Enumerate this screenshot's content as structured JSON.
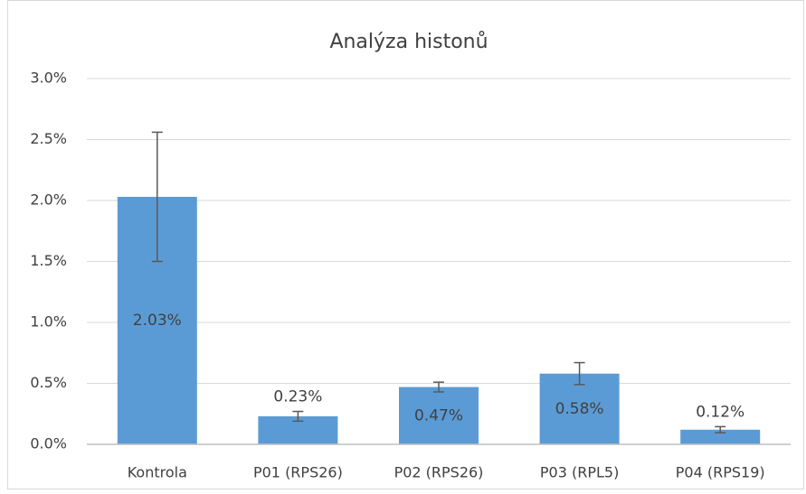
{
  "chart_data": {
    "type": "bar",
    "title": "Analýza histonů",
    "categories": [
      "Kontrola",
      "P01 (RPS26)",
      "P02 (RPS26)",
      "P03 (RPL5)",
      "P04 (RPS19)"
    ],
    "values": [
      2.03,
      0.23,
      0.47,
      0.58,
      0.12
    ],
    "value_labels": [
      "2.03%",
      "0.23%",
      "0.47%",
      "0.58%",
      "0.12%"
    ],
    "errors": [
      0.53,
      0.04,
      0.04,
      0.09,
      0.025
    ],
    "color": "#5b9bd5",
    "ylim": [
      0,
      3
    ],
    "yticks": [
      {
        "value": 0,
        "label": "0.0%"
      },
      {
        "value": 0.5,
        "label": "0.5%"
      },
      {
        "value": 1,
        "label": "1.0%"
      },
      {
        "value": 1.5,
        "label": "1.5%"
      },
      {
        "value": 2,
        "label": "2.0%"
      },
      {
        "value": 2.5,
        "label": "2.5%"
      },
      {
        "value": 3,
        "label": "3.0%"
      }
    ],
    "grid": true
  }
}
